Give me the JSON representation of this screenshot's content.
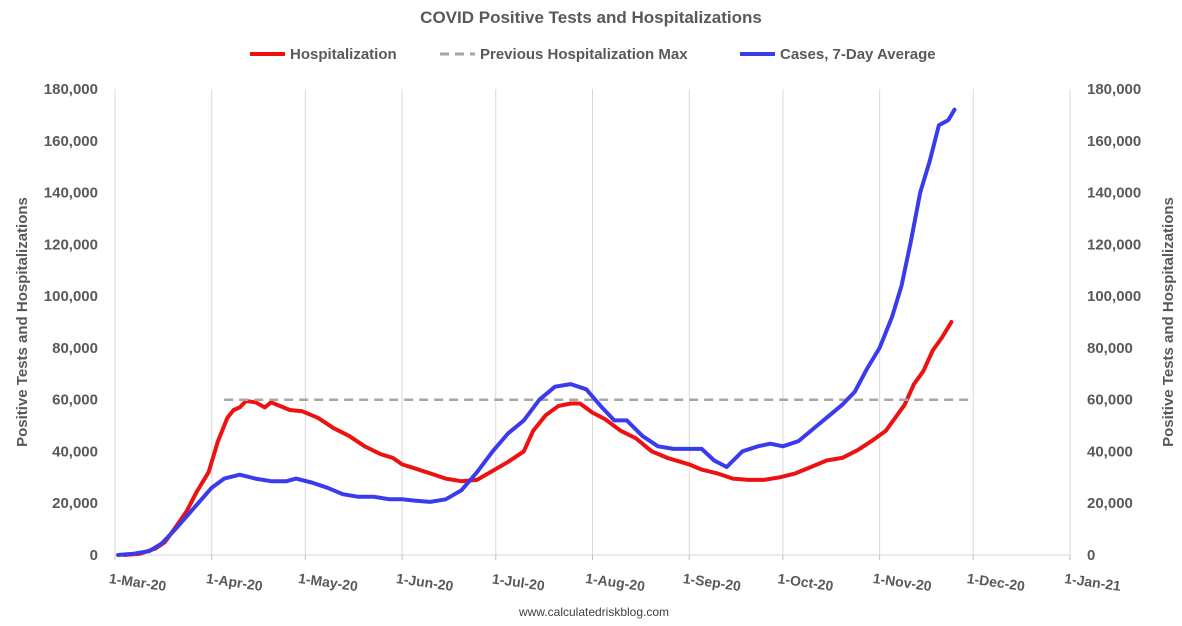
{
  "chart_data": {
    "type": "line",
    "title": "COVID Positive Tests and Hospitalizations",
    "ylabel_left": "Positive Tests and Hospitalizations",
    "ylabel_right": "Positive Tests and Hospitalizations",
    "footer": "www.calculatedriskblog.com",
    "ylim": [
      0,
      180000
    ],
    "yticks": [
      "0",
      "20,000",
      "40,000",
      "60,000",
      "80,000",
      "100,000",
      "120,000",
      "140,000",
      "160,000",
      "180,000"
    ],
    "xlim": [
      "2020-03-01",
      "2021-01-01"
    ],
    "xticks": [
      {
        "label": "1-Mar-20",
        "date": "2020-03-01"
      },
      {
        "label": "1-Apr-20",
        "date": "2020-04-01"
      },
      {
        "label": "1-May-20",
        "date": "2020-05-01"
      },
      {
        "label": "1-Jun-20",
        "date": "2020-06-01"
      },
      {
        "label": "1-Jul-20",
        "date": "2020-07-01"
      },
      {
        "label": "1-Aug-20",
        "date": "2020-08-01"
      },
      {
        "label": "1-Sep-20",
        "date": "2020-09-01"
      },
      {
        "label": "1-Oct-20",
        "date": "2020-10-01"
      },
      {
        "label": "1-Nov-20",
        "date": "2020-11-01"
      },
      {
        "label": "1-Dec-20",
        "date": "2020-12-01"
      },
      {
        "label": "1-Jan-21",
        "date": "2021-01-01"
      }
    ],
    "grid": "vertical",
    "legend_position": "top",
    "series": [
      {
        "name": "Hospitalization",
        "color": "#ee1111",
        "style": "solid",
        "points": [
          [
            "2020-03-04",
            0
          ],
          [
            "2020-03-09",
            500
          ],
          [
            "2020-03-14",
            2500
          ],
          [
            "2020-03-17",
            5000
          ],
          [
            "2020-03-20",
            10000
          ],
          [
            "2020-03-24",
            17000
          ],
          [
            "2020-03-27",
            24000
          ],
          [
            "2020-03-31",
            32000
          ],
          [
            "2020-04-03",
            44000
          ],
          [
            "2020-04-06",
            53000
          ],
          [
            "2020-04-08",
            56000
          ],
          [
            "2020-04-10",
            57000
          ],
          [
            "2020-04-12",
            59500
          ],
          [
            "2020-04-15",
            59000
          ],
          [
            "2020-04-18",
            57000
          ],
          [
            "2020-04-20",
            59000
          ],
          [
            "2020-04-23",
            57500
          ],
          [
            "2020-04-26",
            56000
          ],
          [
            "2020-04-30",
            55500
          ],
          [
            "2020-05-05",
            53000
          ],
          [
            "2020-05-10",
            49000
          ],
          [
            "2020-05-15",
            46000
          ],
          [
            "2020-05-20",
            42000
          ],
          [
            "2020-05-25",
            39000
          ],
          [
            "2020-05-29",
            37500
          ],
          [
            "2020-06-01",
            35000
          ],
          [
            "2020-06-05",
            33500
          ],
          [
            "2020-06-10",
            31500
          ],
          [
            "2020-06-15",
            29500
          ],
          [
            "2020-06-20",
            28500
          ],
          [
            "2020-06-25",
            29000
          ],
          [
            "2020-06-30",
            32500
          ],
          [
            "2020-07-05",
            36000
          ],
          [
            "2020-07-10",
            40000
          ],
          [
            "2020-07-13",
            48000
          ],
          [
            "2020-07-17",
            54000
          ],
          [
            "2020-07-21",
            57500
          ],
          [
            "2020-07-25",
            58500
          ],
          [
            "2020-07-28",
            58500
          ],
          [
            "2020-08-01",
            55000
          ],
          [
            "2020-08-05",
            52500
          ],
          [
            "2020-08-10",
            48000
          ],
          [
            "2020-08-15",
            45000
          ],
          [
            "2020-08-20",
            40000
          ],
          [
            "2020-08-25",
            37500
          ],
          [
            "2020-09-01",
            35000
          ],
          [
            "2020-09-05",
            33000
          ],
          [
            "2020-09-10",
            31500
          ],
          [
            "2020-09-15",
            29500
          ],
          [
            "2020-09-20",
            29000
          ],
          [
            "2020-09-25",
            29000
          ],
          [
            "2020-09-30",
            30000
          ],
          [
            "2020-10-05",
            31500
          ],
          [
            "2020-10-10",
            34000
          ],
          [
            "2020-10-15",
            36500
          ],
          [
            "2020-10-20",
            37500
          ],
          [
            "2020-10-25",
            40500
          ],
          [
            "2020-10-30",
            44500
          ],
          [
            "2020-11-03",
            48000
          ],
          [
            "2020-11-06",
            53000
          ],
          [
            "2020-11-09",
            58000
          ],
          [
            "2020-11-12",
            66000
          ],
          [
            "2020-11-15",
            71000
          ],
          [
            "2020-11-18",
            79000
          ],
          [
            "2020-11-21",
            84000
          ],
          [
            "2020-11-24",
            90000
          ]
        ]
      },
      {
        "name": "Previous Hospitalization Max",
        "color": "#a6a6a6",
        "style": "dashed",
        "points": [
          [
            "2020-04-05",
            60000
          ],
          [
            "2020-11-30",
            60000
          ]
        ]
      },
      {
        "name": "Cases, 7-Day Average",
        "color": "#3b3bee",
        "style": "solid",
        "points": [
          [
            "2020-03-02",
            0
          ],
          [
            "2020-03-07",
            500
          ],
          [
            "2020-03-12",
            1500
          ],
          [
            "2020-03-16",
            4500
          ],
          [
            "2020-03-20",
            9500
          ],
          [
            "2020-03-24",
            15000
          ],
          [
            "2020-03-28",
            20500
          ],
          [
            "2020-04-01",
            26000
          ],
          [
            "2020-04-05",
            29500
          ],
          [
            "2020-04-10",
            31000
          ],
          [
            "2020-04-15",
            29500
          ],
          [
            "2020-04-20",
            28500
          ],
          [
            "2020-04-25",
            28500
          ],
          [
            "2020-04-28",
            29500
          ],
          [
            "2020-05-03",
            28000
          ],
          [
            "2020-05-08",
            26000
          ],
          [
            "2020-05-13",
            23500
          ],
          [
            "2020-05-18",
            22500
          ],
          [
            "2020-05-23",
            22500
          ],
          [
            "2020-05-28",
            21500
          ],
          [
            "2020-06-01",
            21500
          ],
          [
            "2020-06-05",
            21000
          ],
          [
            "2020-06-10",
            20500
          ],
          [
            "2020-06-15",
            21500
          ],
          [
            "2020-06-20",
            25000
          ],
          [
            "2020-06-25",
            32000
          ],
          [
            "2020-06-30",
            40000
          ],
          [
            "2020-07-05",
            47000
          ],
          [
            "2020-07-10",
            52000
          ],
          [
            "2020-07-15",
            60000
          ],
          [
            "2020-07-20",
            65000
          ],
          [
            "2020-07-25",
            66000
          ],
          [
            "2020-07-30",
            64000
          ],
          [
            "2020-08-04",
            57000
          ],
          [
            "2020-08-08",
            52000
          ],
          [
            "2020-08-12",
            52000
          ],
          [
            "2020-08-17",
            46000
          ],
          [
            "2020-08-22",
            42000
          ],
          [
            "2020-08-27",
            41000
          ],
          [
            "2020-09-01",
            41000
          ],
          [
            "2020-09-05",
            41000
          ],
          [
            "2020-09-09",
            36500
          ],
          [
            "2020-09-13",
            34000
          ],
          [
            "2020-09-18",
            40000
          ],
          [
            "2020-09-23",
            42000
          ],
          [
            "2020-09-27",
            43000
          ],
          [
            "2020-10-01",
            42000
          ],
          [
            "2020-10-06",
            44000
          ],
          [
            "2020-10-11",
            49000
          ],
          [
            "2020-10-16",
            54000
          ],
          [
            "2020-10-20",
            58000
          ],
          [
            "2020-10-24",
            63000
          ],
          [
            "2020-10-28",
            72000
          ],
          [
            "2020-11-01",
            80000
          ],
          [
            "2020-11-05",
            92000
          ],
          [
            "2020-11-08",
            104000
          ],
          [
            "2020-11-11",
            121000
          ],
          [
            "2020-11-14",
            140000
          ],
          [
            "2020-11-17",
            152000
          ],
          [
            "2020-11-20",
            166000
          ],
          [
            "2020-11-23",
            168000
          ],
          [
            "2020-11-25",
            172000
          ]
        ]
      }
    ]
  }
}
